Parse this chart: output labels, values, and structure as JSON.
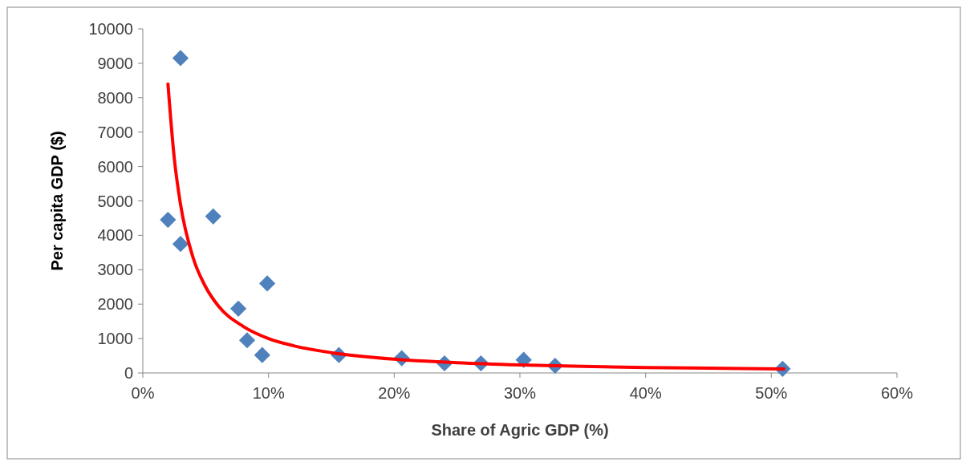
{
  "chart_data": {
    "type": "scatter",
    "xlabel": "Share of Agric GDP (%)",
    "ylabel": "Per capita GDP ($)",
    "xlim": [
      0,
      60
    ],
    "xticks": [
      {
        "value": 0,
        "label": "0%"
      },
      {
        "value": 10,
        "label": "10%"
      },
      {
        "value": 20,
        "label": "20%"
      },
      {
        "value": 30,
        "label": "30%"
      },
      {
        "value": 40,
        "label": "40%"
      },
      {
        "value": 50,
        "label": "50%"
      },
      {
        "value": 60,
        "label": "60%"
      }
    ],
    "ylim": [
      0,
      10000
    ],
    "yticks": [
      0,
      1000,
      2000,
      3000,
      4000,
      5000,
      6000,
      7000,
      8000,
      9000,
      10000
    ],
    "grid": false,
    "marker": "diamond",
    "series": [
      {
        "color": "#4f81bd",
        "x": [
          2.0,
          3.0,
          3.0,
          5.6,
          7.6,
          8.3,
          9.5,
          9.9,
          15.6,
          20.6,
          24.0,
          26.9,
          30.3,
          32.8,
          50.9
        ],
        "values": [
          4450,
          9150,
          3750,
          4550,
          1870,
          950,
          520,
          2600,
          520,
          430,
          280,
          280,
          380,
          210,
          120
        ]
      },
      {
        "type": "line",
        "color": "#ff0000",
        "marker": "none",
        "line_style": "solid",
        "x": [
          2,
          2.5,
          3,
          4,
          5,
          6,
          8,
          10,
          12,
          15,
          20,
          25,
          30,
          35,
          40,
          45,
          51
        ],
        "values": [
          8400,
          6250,
          4900,
          3350,
          2500,
          1950,
          1350,
          1000,
          790,
          590,
          400,
          300,
          235,
          190,
          160,
          140,
          117
        ]
      }
    ]
  }
}
